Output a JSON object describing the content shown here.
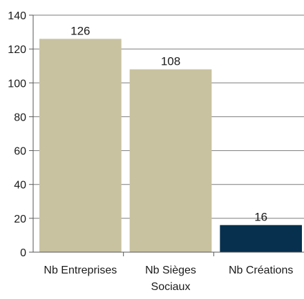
{
  "chart_data": {
    "type": "bar",
    "title": "",
    "xlabel": "",
    "ylabel": "",
    "categories": [
      [
        "Nb Entreprises"
      ],
      [
        "Nb Sièges",
        "Sociaux"
      ],
      [
        "Nb Créations"
      ]
    ],
    "values": [
      126,
      108,
      16
    ],
    "data_labels": [
      "126",
      "108",
      "16"
    ],
    "colors": [
      "#c8c2a0",
      "#c8c2a0",
      "#06304e"
    ],
    "ylim": [
      0,
      140
    ],
    "yticks": [
      0,
      20,
      40,
      60,
      80,
      100,
      120,
      140
    ],
    "grid": true,
    "legend": "none"
  }
}
